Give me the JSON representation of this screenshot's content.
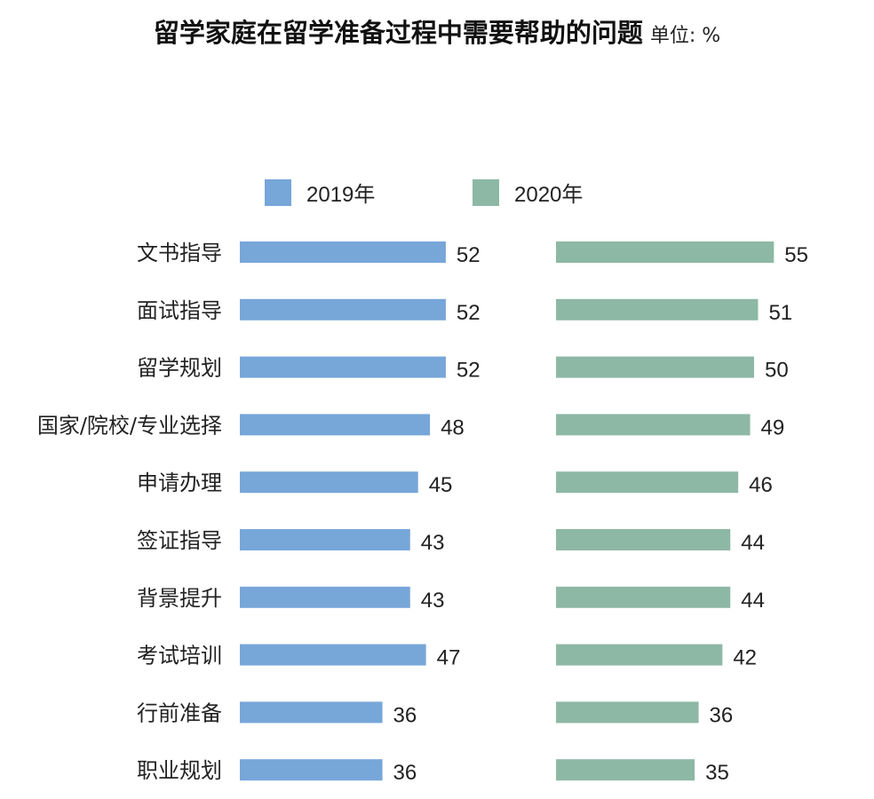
{
  "chart_data": {
    "type": "bar",
    "orientation": "horizontal",
    "title": "留学家庭在留学准备过程中需要帮助的问题",
    "unit": "单位: %",
    "categories": [
      "文书指导",
      "面试指导",
      "留学规划",
      "国家/院校/专业选择",
      "申请办理",
      "签证指导",
      "背景提升",
      "考试培训",
      "行前准备",
      "职业规划"
    ],
    "series": [
      {
        "name": "2019年",
        "color": "#77a6d9",
        "values": [
          52,
          52,
          52,
          48,
          45,
          43,
          43,
          47,
          36,
          36
        ]
      },
      {
        "name": "2020年",
        "color": "#8db8a5",
        "values": [
          55,
          51,
          50,
          49,
          46,
          44,
          44,
          42,
          36,
          35
        ]
      }
    ],
    "legend": "top",
    "grid": false,
    "data_labels": true
  }
}
